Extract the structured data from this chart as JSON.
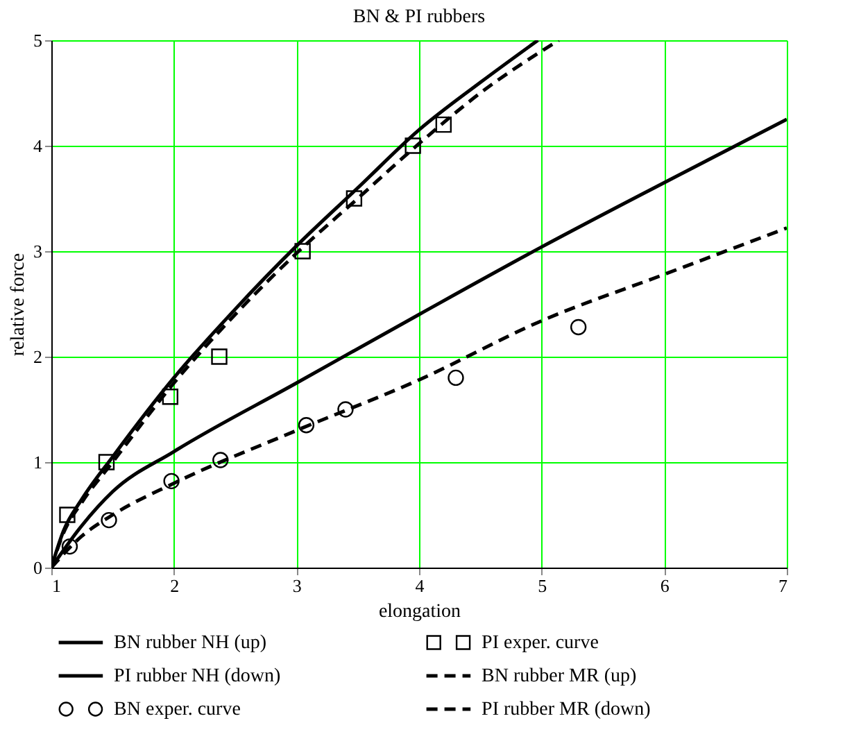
{
  "chart_data": {
    "type": "line",
    "title": "BN & PI rubbers",
    "xlabel": "elongation",
    "ylabel": "relative force",
    "xlim": [
      1,
      7
    ],
    "ylim": [
      0,
      5
    ],
    "xticks": [
      1,
      2,
      3,
      4,
      5,
      6,
      7
    ],
    "yticks": [
      0,
      1,
      2,
      3,
      4,
      5
    ],
    "grid": true,
    "legend": "bottom",
    "series": [
      {
        "name": "BN rubber NH (up)",
        "color": "#000000",
        "line_style": "solid",
        "x": [
          1,
          1.1,
          1.25,
          1.5,
          2,
          2.5,
          3,
          3.5,
          4,
          4.5,
          4.97
        ],
        "values": [
          0,
          0.35,
          0.65,
          1.05,
          1.8,
          2.45,
          3.05,
          3.6,
          4.15,
          4.6,
          5.0
        ]
      },
      {
        "name": "PI rubber NH (down)",
        "color": "#000000",
        "line_style": "solid",
        "x": [
          1,
          1.25,
          1.5,
          2,
          3,
          4,
          5,
          6,
          7
        ],
        "values": [
          0,
          0.4,
          0.72,
          1.1,
          1.75,
          2.4,
          3.04,
          3.65,
          4.25
        ]
      },
      {
        "name": "BN exper. curve",
        "type": "scatter",
        "color": "#000000",
        "marker": "circle",
        "x": [
          1.15,
          1.47,
          1.98,
          2.38,
          3.08,
          3.4,
          4.3,
          5.3
        ],
        "values": [
          0.2,
          0.45,
          0.82,
          1.02,
          1.35,
          1.5,
          1.8,
          2.28
        ]
      },
      {
        "name": "PI exper. curve",
        "type": "scatter",
        "color": "#000000",
        "marker": "square",
        "x": [
          1.13,
          1.45,
          1.97,
          2.37,
          3.05,
          3.47,
          3.95,
          4.2
        ],
        "values": [
          0.5,
          1.0,
          1.62,
          2.0,
          3.0,
          3.5,
          4.0,
          4.2
        ]
      },
      {
        "name": "BN rubber MR (up)",
        "color": "#000000",
        "line_style": "dashed",
        "x": [
          1,
          1.1,
          1.25,
          1.5,
          2,
          2.5,
          3,
          3.5,
          4,
          4.5,
          5.14
        ],
        "values": [
          0,
          0.33,
          0.62,
          1.0,
          1.75,
          2.4,
          2.98,
          3.5,
          4.02,
          4.5,
          5.0
        ]
      },
      {
        "name": "PI rubber MR (down)",
        "color": "#000000",
        "line_style": "dashed",
        "x": [
          1,
          1.25,
          1.5,
          2,
          3,
          4,
          5,
          6,
          7
        ],
        "values": [
          0,
          0.3,
          0.5,
          0.8,
          1.3,
          1.78,
          2.34,
          2.78,
          3.22
        ]
      }
    ]
  }
}
